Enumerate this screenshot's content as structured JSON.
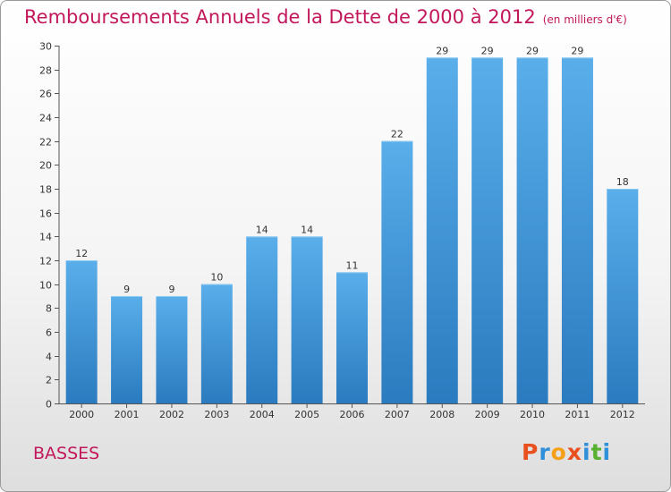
{
  "header": {
    "title": "Remboursements Annuels de la Dette de 2000 à 2012",
    "unit": "(en milliers d'€)"
  },
  "footer": {
    "commune": "BASSES",
    "brand_letters": [
      "P",
      "r",
      "o",
      "x",
      "i",
      "t",
      "i"
    ],
    "brand_colors": [
      "#e8501e",
      "#2f8fd8",
      "#f4a019",
      "#e8501e",
      "#2f8fd8",
      "#58b030",
      "#2f8fd8"
    ]
  },
  "chart_data": {
    "type": "bar",
    "title": "Remboursements Annuels de la Dette de 2000 à 2012",
    "subtitle": "(en milliers d'€)",
    "categories": [
      "2000",
      "2001",
      "2002",
      "2003",
      "2004",
      "2005",
      "2006",
      "2007",
      "2008",
      "2009",
      "2010",
      "2011",
      "2012"
    ],
    "values": [
      12,
      9,
      9,
      10,
      14,
      14,
      11,
      22,
      29,
      29,
      29,
      29,
      18
    ],
    "ylim": [
      0,
      30
    ],
    "yticks": [
      0,
      2,
      4,
      6,
      8,
      10,
      12,
      14,
      16,
      18,
      20,
      22,
      24,
      26,
      28,
      30
    ],
    "grid": false,
    "bar_color_top": "#5aaeea",
    "bar_color_bottom": "#2a7bbf"
  }
}
